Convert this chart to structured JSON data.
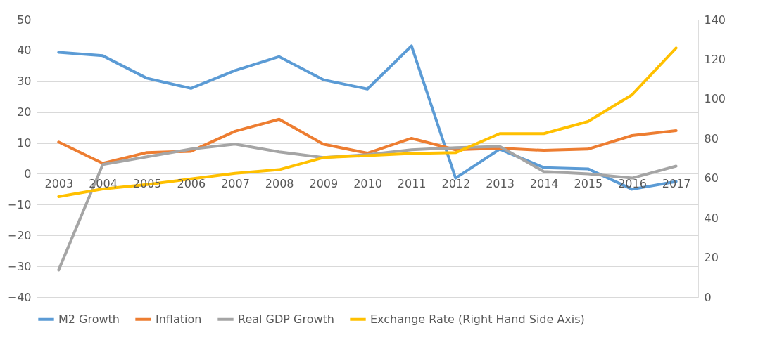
{
  "chart_data": {
    "type": "line",
    "categories": [
      "2003",
      "2004",
      "2005",
      "2006",
      "2007",
      "2008",
      "2009",
      "2010",
      "2011",
      "2012",
      "2013",
      "2014",
      "2015",
      "2016",
      "2017"
    ],
    "series": [
      {
        "name": "M2 Growth",
        "color": "#5b9bd5",
        "values": [
          39.4,
          38.3,
          31,
          27.7,
          33.5,
          38,
          30.5,
          27.5,
          41.5,
          -1.4,
          8,
          2,
          1.6,
          -5,
          -2.5
        ]
      },
      {
        "name": "Inflation",
        "color": "#ed7d31",
        "values": [
          10.3,
          3.4,
          6.9,
          7.3,
          13.8,
          17.7,
          9.6,
          6.7,
          11.5,
          7.8,
          8.3,
          7.6,
          8,
          12.4,
          14
        ]
      },
      {
        "name": "Real GDP Growth",
        "color": "#a5a5a5",
        "values": [
          -31.2,
          3,
          5.5,
          8,
          9.6,
          7.1,
          5.3,
          6.2,
          7.8,
          8.5,
          8.9,
          0.7,
          0,
          -1.4,
          2.5
        ]
      },
      {
        "name": "Exchange Rate (Right Hand Side Axis)",
        "color": "#ffc000",
        "axis": "y2",
        "values": [
          50.7,
          54.6,
          56.8,
          59.6,
          62.5,
          64.3,
          70.4,
          71.4,
          72.5,
          72.9,
          82.5,
          82.5,
          88.6,
          102.1,
          125.7
        ]
      }
    ],
    "ylim": [
      -40,
      50
    ],
    "yticks": [
      -40,
      -30,
      -20,
      -10,
      0,
      10,
      20,
      30,
      40,
      50
    ],
    "y2lim": [
      0,
      140
    ],
    "y2ticks": [
      0,
      20,
      40,
      60,
      80,
      100,
      120,
      140
    ],
    "grid": "y",
    "legend": "bottom",
    "marker": "none",
    "line_style": "solid"
  }
}
